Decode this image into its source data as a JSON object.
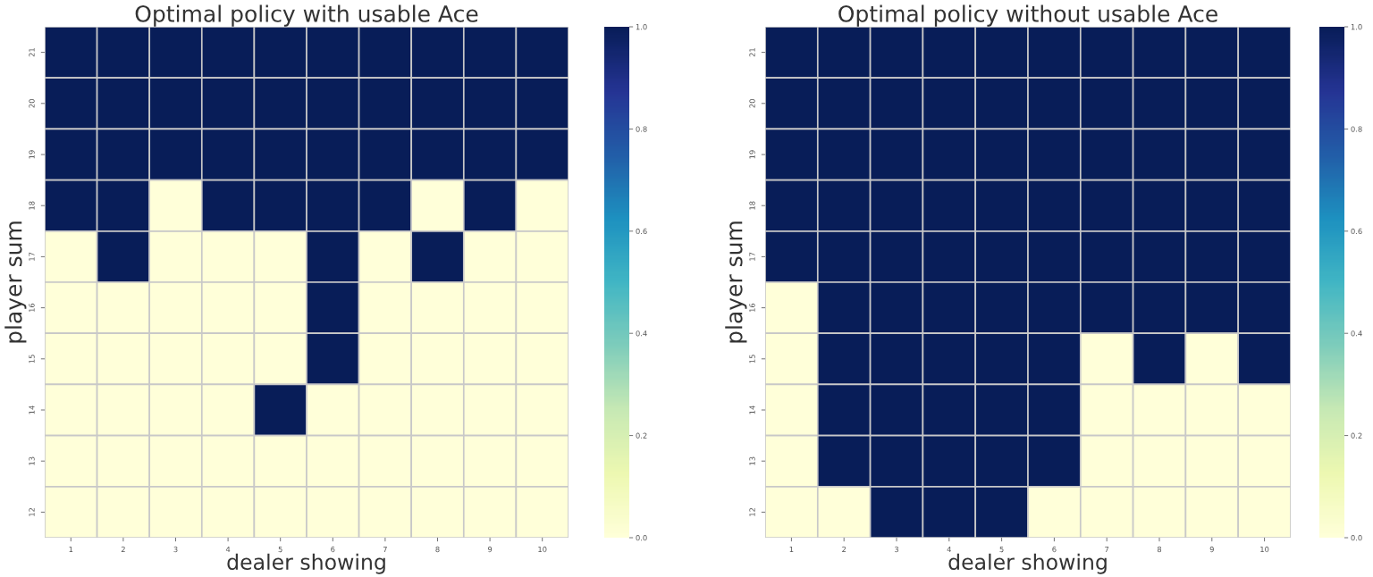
{
  "chart_data": [
    {
      "type": "heatmap",
      "title": "Optimal policy with usable Ace",
      "xlabel": "dealer showing",
      "ylabel": "player sum",
      "categories": [
        "1",
        "2",
        "3",
        "4",
        "5",
        "6",
        "7",
        "8",
        "9",
        "10"
      ],
      "y_categories": [
        "21",
        "20",
        "19",
        "18",
        "17",
        "16",
        "15",
        "14",
        "13",
        "12"
      ],
      "cells": [
        [
          1,
          1,
          1,
          1,
          1,
          1,
          1,
          1,
          1,
          1
        ],
        [
          1,
          1,
          1,
          1,
          1,
          1,
          1,
          1,
          1,
          1
        ],
        [
          1,
          1,
          1,
          1,
          1,
          1,
          1,
          1,
          1,
          1
        ],
        [
          1,
          1,
          0,
          1,
          1,
          1,
          1,
          0,
          1,
          0
        ],
        [
          0,
          1,
          0,
          0,
          0,
          1,
          0,
          1,
          0,
          0
        ],
        [
          0,
          0,
          0,
          0,
          0,
          1,
          0,
          0,
          0,
          0
        ],
        [
          0,
          0,
          0,
          0,
          0,
          1,
          0,
          0,
          0,
          0
        ],
        [
          0,
          0,
          0,
          0,
          1,
          0,
          0,
          0,
          0,
          0
        ],
        [
          0,
          0,
          0,
          0,
          0,
          0,
          0,
          0,
          0,
          0
        ],
        [
          0,
          0,
          0,
          0,
          0,
          0,
          0,
          0,
          0,
          0
        ]
      ],
      "clim": [
        0,
        1
      ],
      "cticks": [
        {
          "value": 0,
          "label": "0.0"
        },
        {
          "value": 0.2,
          "label": "0.2"
        },
        {
          "value": 0.4,
          "label": "0.4"
        },
        {
          "value": 0.6,
          "label": "0.6"
        },
        {
          "value": 0.8,
          "label": "0.8"
        },
        {
          "value": 1,
          "label": "1.0"
        }
      ]
    },
    {
      "type": "heatmap",
      "title": "Optimal policy without usable Ace",
      "xlabel": "dealer showing",
      "ylabel": "player sum",
      "categories": [
        "1",
        "2",
        "3",
        "4",
        "5",
        "6",
        "7",
        "8",
        "9",
        "10"
      ],
      "y_categories": [
        "21",
        "20",
        "19",
        "18",
        "17",
        "16",
        "15",
        "14",
        "13",
        "12"
      ],
      "cells": [
        [
          1,
          1,
          1,
          1,
          1,
          1,
          1,
          1,
          1,
          1
        ],
        [
          1,
          1,
          1,
          1,
          1,
          1,
          1,
          1,
          1,
          1
        ],
        [
          1,
          1,
          1,
          1,
          1,
          1,
          1,
          1,
          1,
          1
        ],
        [
          1,
          1,
          1,
          1,
          1,
          1,
          1,
          1,
          1,
          1
        ],
        [
          1,
          1,
          1,
          1,
          1,
          1,
          1,
          1,
          1,
          1
        ],
        [
          0,
          1,
          1,
          1,
          1,
          1,
          1,
          1,
          1,
          1
        ],
        [
          0,
          1,
          1,
          1,
          1,
          1,
          0,
          1,
          0,
          1
        ],
        [
          0,
          1,
          1,
          1,
          1,
          1,
          0,
          0,
          0,
          0
        ],
        [
          0,
          1,
          1,
          1,
          1,
          1,
          0,
          0,
          0,
          0
        ],
        [
          0,
          0,
          1,
          1,
          1,
          0,
          0,
          0,
          0,
          0
        ]
      ],
      "clim": [
        0,
        1
      ],
      "cticks": [
        {
          "value": 0,
          "label": "0.0"
        },
        {
          "value": 0.2,
          "label": "0.2"
        },
        {
          "value": 0.4,
          "label": "0.4"
        },
        {
          "value": 0.6,
          "label": "0.6"
        },
        {
          "value": 0.8,
          "label": "0.8"
        },
        {
          "value": 1,
          "label": "1.0"
        }
      ]
    }
  ]
}
